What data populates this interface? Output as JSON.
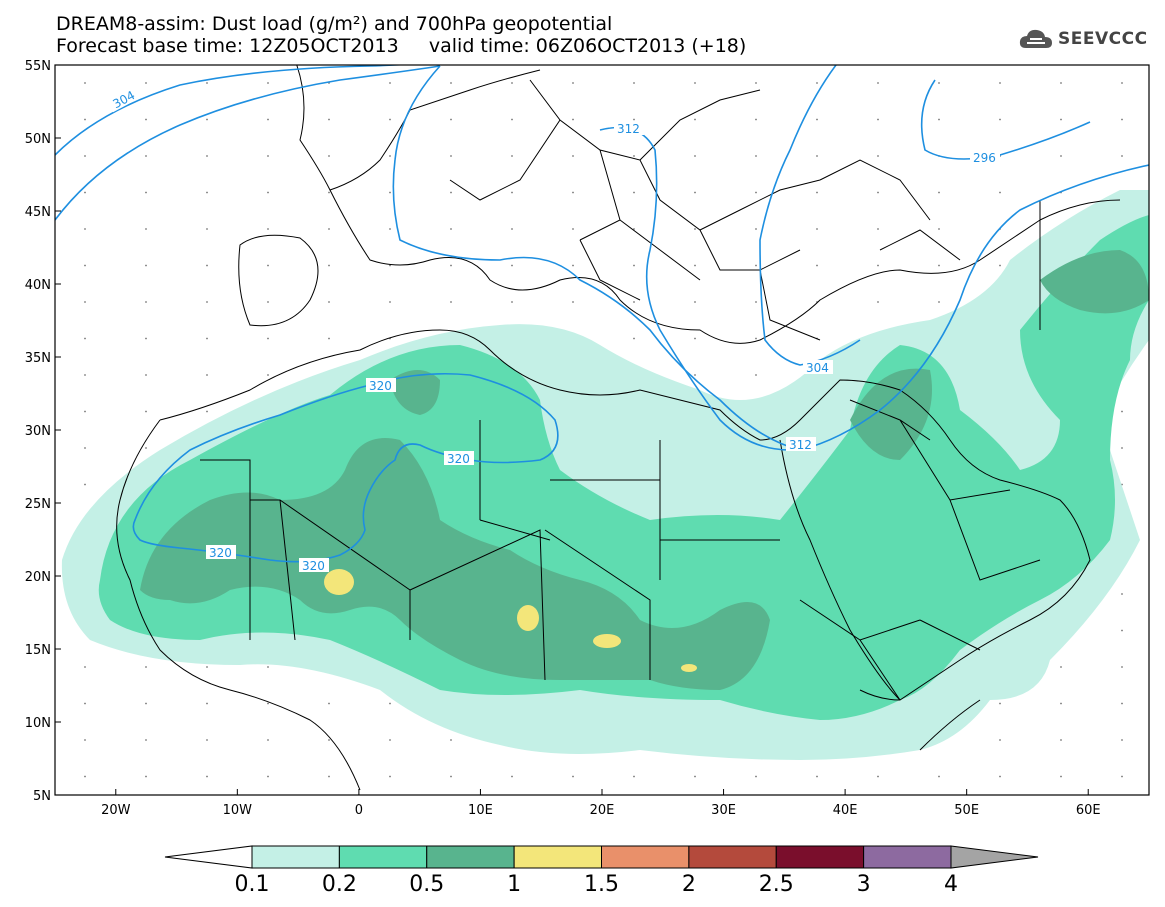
{
  "title": {
    "line1": "DREAM8-assim: Dust load (g/m²) and 700hPa geopotential",
    "line2": "Forecast base time: 12Z05OCT2013     valid time: 06Z06OCT2013 (+18)"
  },
  "logo": {
    "text": "SEEVCCC",
    "icon": "cloud-icon"
  },
  "map": {
    "lon_range": [
      -25,
      65
    ],
    "lat_range": [
      5,
      55
    ],
    "lat_ticks": [
      "55N",
      "50N",
      "45N",
      "40N",
      "35N",
      "30N",
      "25N",
      "20N",
      "15N",
      "10N",
      "5N"
    ],
    "lon_ticks": [
      "20W",
      "10W",
      "0",
      "10E",
      "20E",
      "30E",
      "40E",
      "50E",
      "60E"
    ],
    "contour_labels": [
      "304",
      "312",
      "296",
      "304",
      "312",
      "320",
      "320",
      "320",
      "320"
    ]
  },
  "colorbar": {
    "labels": [
      "0.1",
      "0.2",
      "0.5",
      "1",
      "1.5",
      "2",
      "2.5",
      "3",
      "4"
    ],
    "colors": [
      "#c4f0e6",
      "#5fdcb0",
      "#58b48e",
      "#f3e67a",
      "#e9906a",
      "#b44a3c",
      "#7a0e2c",
      "#8d6aa0",
      "#a4a4a4"
    ]
  }
}
